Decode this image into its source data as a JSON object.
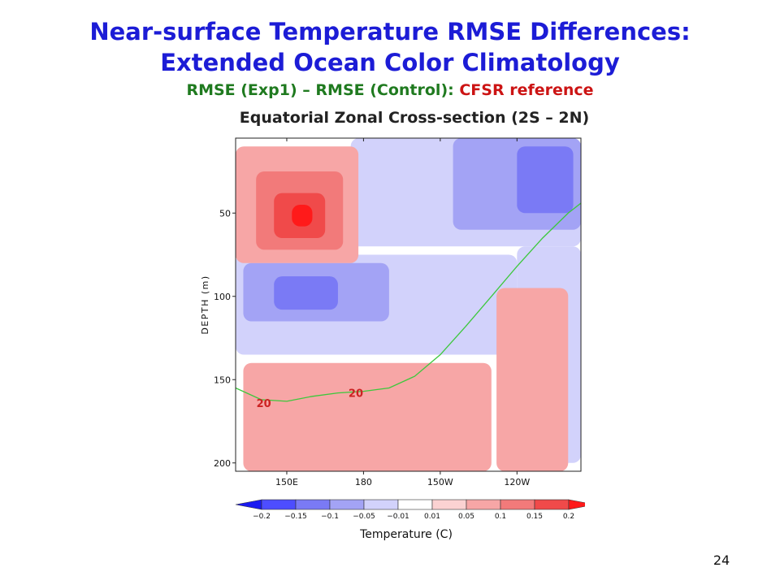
{
  "slide": {
    "title_line1": "Near-surface Temperature RMSE Differences:",
    "title_line2": "Extended Ocean Color Climatology",
    "subtitle_part1": "RMSE (Exp1) – RMSE (Control): ",
    "subtitle_part2": "CFSR reference",
    "section_title": "Equatorial Zonal Cross-section (2S – 2N)",
    "page_number": "24"
  },
  "colors": {
    "title": "#1c1cd6",
    "subtitle_green": "#1f7a1f",
    "subtitle_red": "#cc1414",
    "isotherm": "#3cc83c",
    "isotherm_label": "#cc2222"
  },
  "chart_data": {
    "type": "heatmap",
    "title": "Equatorial Zonal Cross-section (2S – 2N)",
    "xlabel": "",
    "ylabel": "DEPTH (m)",
    "colorbar_label": "Temperature (C)",
    "x_ticks": [
      {
        "lon": 150,
        "label": "150E"
      },
      {
        "lon": 180,
        "label": "180"
      },
      {
        "lon": 210,
        "label": "150W"
      },
      {
        "lon": 240,
        "label": "120W"
      }
    ],
    "xlim": [
      130,
      265
    ],
    "y_ticks": [
      {
        "depth": 50,
        "label": "50"
      },
      {
        "depth": 100,
        "label": "100"
      },
      {
        "depth": 150,
        "label": "150"
      },
      {
        "depth": 200,
        "label": "200"
      }
    ],
    "ylim": [
      5,
      205
    ],
    "colorbar": {
      "levels": [
        -0.2,
        -0.15,
        -0.1,
        -0.05,
        -0.01,
        0.01,
        0.05,
        0.1,
        0.15,
        0.2
      ],
      "tick_labels": [
        "−0.2",
        "−0.15",
        "−0.1",
        "−0.05",
        "−0.01",
        "0.01",
        "0.05",
        "0.1",
        "0.15",
        "0.2"
      ],
      "colors": [
        "#1a1af0",
        "#4d4dff",
        "#7a7af5",
        "#a3a3f5",
        "#d2d2fb",
        "#ffffff",
        "#fbd2d2",
        "#f7a6a6",
        "#f27a7a",
        "#f04a4a",
        "#ff1a1a"
      ]
    },
    "regions": [
      {
        "level": 0,
        "lon": [
          130,
          265
        ],
        "depth": [
          5,
          205
        ]
      },
      {
        "level": -0.05,
        "lon": [
          175,
          265
        ],
        "depth": [
          5,
          70
        ]
      },
      {
        "level": -0.1,
        "lon": [
          215,
          265
        ],
        "depth": [
          5,
          60
        ]
      },
      {
        "level": -0.15,
        "lon": [
          240,
          262
        ],
        "depth": [
          10,
          50
        ]
      },
      {
        "level": -0.05,
        "lon": [
          130,
          240
        ],
        "depth": [
          75,
          135
        ]
      },
      {
        "level": -0.1,
        "lon": [
          133,
          190
        ],
        "depth": [
          80,
          115
        ]
      },
      {
        "level": -0.15,
        "lon": [
          145,
          170
        ],
        "depth": [
          88,
          108
        ]
      },
      {
        "level": -0.05,
        "lon": [
          240,
          265
        ],
        "depth": [
          70,
          200
        ]
      },
      {
        "level": 0.05,
        "lon": [
          130,
          178
        ],
        "depth": [
          10,
          80
        ]
      },
      {
        "level": 0.1,
        "lon": [
          138,
          172
        ],
        "depth": [
          25,
          72
        ]
      },
      {
        "level": 0.15,
        "lon": [
          145,
          165
        ],
        "depth": [
          38,
          65
        ]
      },
      {
        "level": 0.2,
        "lon": [
          152,
          160
        ],
        "depth": [
          45,
          58
        ]
      },
      {
        "level": 0.05,
        "lon": [
          133,
          230
        ],
        "depth": [
          140,
          205
        ]
      },
      {
        "level": 0.05,
        "lon": [
          232,
          260
        ],
        "depth": [
          95,
          205
        ]
      }
    ],
    "isotherm_20C": {
      "label": "20",
      "lon": [
        130,
        140,
        150,
        160,
        170,
        180,
        190,
        200,
        210,
        220,
        230,
        240,
        250,
        260,
        265
      ],
      "depth": [
        155,
        162,
        163,
        160,
        158,
        157,
        155,
        148,
        135,
        118,
        100,
        82,
        65,
        50,
        44
      ]
    },
    "isotherm_labels": [
      {
        "text": "20",
        "lon": 141,
        "depth": 164
      },
      {
        "text": "20",
        "lon": 177,
        "depth": 158
      }
    ]
  }
}
